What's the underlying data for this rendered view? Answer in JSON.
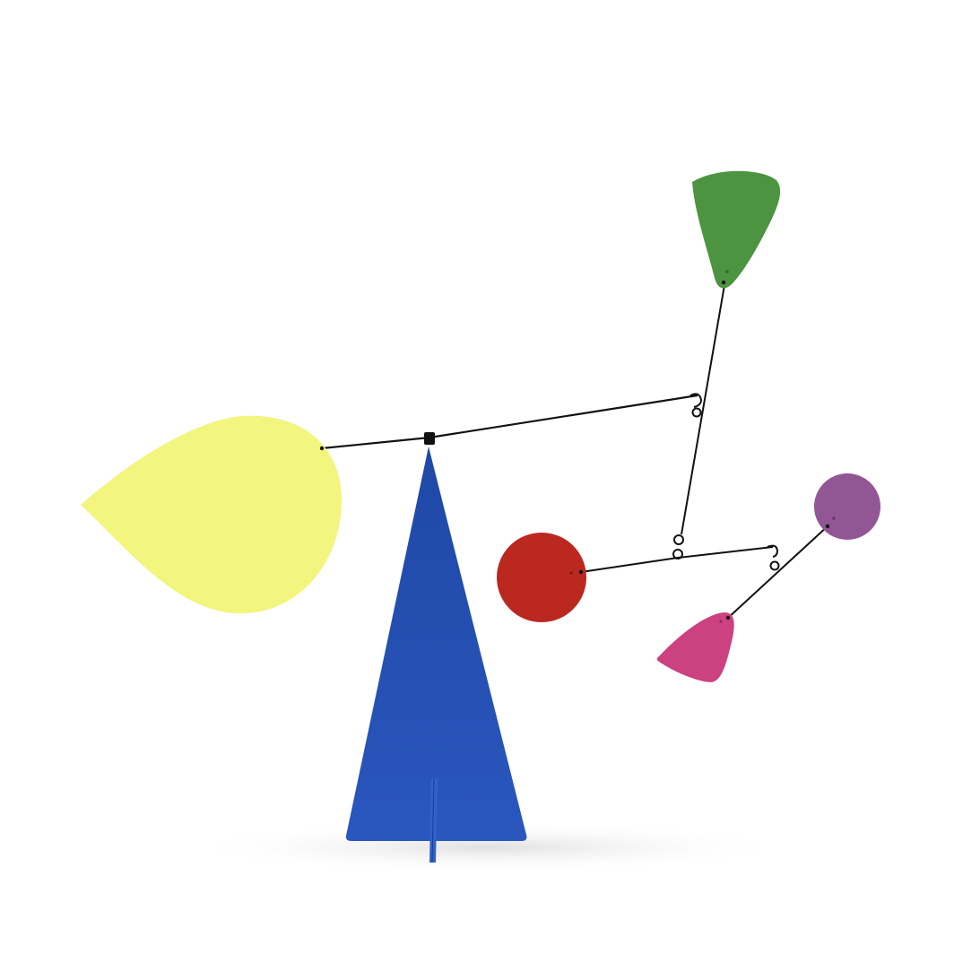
{
  "artwork": {
    "subject": "stabile-mobile",
    "colors": {
      "background": "#ffffff",
      "base": "#1f48a6",
      "base_edge": "#2a57be",
      "wire": "#111111",
      "yellow": "#f2f57e",
      "green": "#4c9440",
      "red": "#bb2820",
      "purple": "#935694",
      "pink": "#cc417f",
      "shadow": "#e9e9e9"
    },
    "pieces": [
      "yellow",
      "green",
      "red",
      "purple",
      "pink"
    ]
  }
}
